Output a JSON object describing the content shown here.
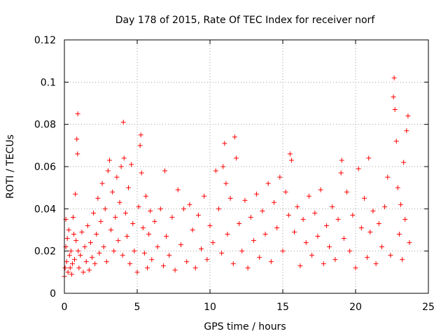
{
  "chart_data": {
    "type": "scatter",
    "title": "Day 178 of 2015, Rate Of TEC Index for receiver norf",
    "xlabel": "GPS time / hours",
    "ylabel": "ROTI / TECUs",
    "xlim": [
      0,
      25
    ],
    "ylim": [
      0,
      0.12
    ],
    "x_ticks": [
      0,
      5,
      10,
      15,
      20,
      25
    ],
    "x_tick_labels": [
      "0",
      "5",
      "10",
      "15",
      "20",
      "25"
    ],
    "y_ticks": [
      0,
      0.02,
      0.04,
      0.06,
      0.08,
      0.1,
      0.12
    ],
    "y_tick_labels": [
      "0",
      "0.02",
      "0.04",
      "0.06",
      "0.08",
      "0.1",
      "0.12"
    ],
    "grid": true,
    "legend": "none",
    "marker": "plus",
    "series": [
      {
        "color": "#ff0000",
        "points": [
          [
            0.0,
            0.008
          ],
          [
            0.05,
            0.012
          ],
          [
            0.1,
            0.022
          ],
          [
            0.1,
            0.035
          ],
          [
            0.15,
            0.015
          ],
          [
            0.2,
            0.026
          ],
          [
            0.25,
            0.01
          ],
          [
            0.3,
            0.03
          ],
          [
            0.35,
            0.018
          ],
          [
            0.4,
            0.012
          ],
          [
            0.45,
            0.02
          ],
          [
            0.5,
            0.009
          ],
          [
            0.55,
            0.014
          ],
          [
            0.6,
            0.036
          ],
          [
            0.65,
            0.028
          ],
          [
            0.7,
            0.016
          ],
          [
            0.75,
            0.047
          ],
          [
            0.8,
            0.025
          ],
          [
            0.85,
            0.073
          ],
          [
            0.9,
            0.066
          ],
          [
            0.92,
            0.085
          ],
          [
            0.95,
            0.02
          ],
          [
            1.0,
            0.012
          ],
          [
            1.1,
            0.018
          ],
          [
            1.2,
            0.029
          ],
          [
            1.3,
            0.01
          ],
          [
            1.4,
            0.022
          ],
          [
            1.5,
            0.015
          ],
          [
            1.6,
            0.032
          ],
          [
            1.7,
            0.011
          ],
          [
            1.8,
            0.024
          ],
          [
            1.9,
            0.017
          ],
          [
            2.0,
            0.038
          ],
          [
            2.1,
            0.014
          ],
          [
            2.2,
            0.028
          ],
          [
            2.3,
            0.045
          ],
          [
            2.4,
            0.019
          ],
          [
            2.5,
            0.034
          ],
          [
            2.6,
            0.052
          ],
          [
            2.7,
            0.022
          ],
          [
            2.8,
            0.04
          ],
          [
            2.9,
            0.015
          ],
          [
            3.0,
            0.058
          ],
          [
            3.1,
            0.063
          ],
          [
            3.2,
            0.03
          ],
          [
            3.3,
            0.048
          ],
          [
            3.4,
            0.02
          ],
          [
            3.5,
            0.036
          ],
          [
            3.6,
            0.055
          ],
          [
            3.7,
            0.025
          ],
          [
            3.8,
            0.043
          ],
          [
            3.9,
            0.06
          ],
          [
            4.0,
            0.018
          ],
          [
            4.05,
            0.081
          ],
          [
            4.1,
            0.064
          ],
          [
            4.2,
            0.038
          ],
          [
            4.3,
            0.027
          ],
          [
            4.4,
            0.05
          ],
          [
            4.5,
            0.014
          ],
          [
            4.6,
            0.061
          ],
          [
            4.7,
            0.033
          ],
          [
            4.8,
            0.02
          ],
          [
            5.0,
            0.01
          ],
          [
            5.1,
            0.041
          ],
          [
            5.2,
            0.07
          ],
          [
            5.25,
            0.075
          ],
          [
            5.3,
            0.057
          ],
          [
            5.4,
            0.031
          ],
          [
            5.5,
            0.019
          ],
          [
            5.6,
            0.046
          ],
          [
            5.7,
            0.012
          ],
          [
            5.8,
            0.028
          ],
          [
            5.9,
            0.039
          ],
          [
            6.0,
            0.016
          ],
          [
            6.2,
            0.034
          ],
          [
            6.4,
            0.022
          ],
          [
            6.6,
            0.04
          ],
          [
            6.8,
            0.013
          ],
          [
            6.9,
            0.058
          ],
          [
            7.0,
            0.027
          ],
          [
            7.2,
            0.018
          ],
          [
            7.4,
            0.036
          ],
          [
            7.6,
            0.011
          ],
          [
            7.8,
            0.049
          ],
          [
            8.0,
            0.023
          ],
          [
            8.2,
            0.04
          ],
          [
            8.4,
            0.015
          ],
          [
            8.6,
            0.042
          ],
          [
            8.8,
            0.03
          ],
          [
            9.0,
            0.012
          ],
          [
            9.2,
            0.037
          ],
          [
            9.4,
            0.021
          ],
          [
            9.6,
            0.046
          ],
          [
            9.8,
            0.016
          ],
          [
            10.0,
            0.032
          ],
          [
            10.2,
            0.024
          ],
          [
            10.4,
            0.058
          ],
          [
            10.6,
            0.04
          ],
          [
            10.8,
            0.019
          ],
          [
            10.9,
            0.06
          ],
          [
            11.0,
            0.071
          ],
          [
            11.1,
            0.052
          ],
          [
            11.2,
            0.028
          ],
          [
            11.4,
            0.045
          ],
          [
            11.6,
            0.014
          ],
          [
            11.7,
            0.074
          ],
          [
            11.8,
            0.064
          ],
          [
            12.0,
            0.033
          ],
          [
            12.2,
            0.02
          ],
          [
            12.4,
            0.044
          ],
          [
            12.6,
            0.012
          ],
          [
            12.8,
            0.036
          ],
          [
            13.0,
            0.025
          ],
          [
            13.2,
            0.047
          ],
          [
            13.4,
            0.017
          ],
          [
            13.6,
            0.039
          ],
          [
            13.8,
            0.028
          ],
          [
            14.0,
            0.052
          ],
          [
            14.2,
            0.015
          ],
          [
            14.4,
            0.043
          ],
          [
            14.6,
            0.031
          ],
          [
            14.8,
            0.055
          ],
          [
            15.0,
            0.02
          ],
          [
            15.2,
            0.048
          ],
          [
            15.4,
            0.037
          ],
          [
            15.5,
            0.066
          ],
          [
            15.6,
            0.063
          ],
          [
            15.8,
            0.029
          ],
          [
            16.0,
            0.041
          ],
          [
            16.2,
            0.013
          ],
          [
            16.4,
            0.035
          ],
          [
            16.6,
            0.024
          ],
          [
            16.8,
            0.046
          ],
          [
            17.0,
            0.018
          ],
          [
            17.2,
            0.038
          ],
          [
            17.4,
            0.027
          ],
          [
            17.6,
            0.049
          ],
          [
            17.8,
            0.014
          ],
          [
            18.0,
            0.032
          ],
          [
            18.2,
            0.022
          ],
          [
            18.4,
            0.041
          ],
          [
            18.6,
            0.016
          ],
          [
            18.8,
            0.035
          ],
          [
            19.0,
            0.057
          ],
          [
            19.05,
            0.063
          ],
          [
            19.2,
            0.026
          ],
          [
            19.4,
            0.048
          ],
          [
            19.6,
            0.02
          ],
          [
            19.8,
            0.037
          ],
          [
            20.0,
            0.012
          ],
          [
            20.2,
            0.059
          ],
          [
            20.4,
            0.031
          ],
          [
            20.6,
            0.045
          ],
          [
            20.8,
            0.017
          ],
          [
            20.9,
            0.064
          ],
          [
            21.0,
            0.029
          ],
          [
            21.2,
            0.039
          ],
          [
            21.4,
            0.014
          ],
          [
            21.6,
            0.033
          ],
          [
            21.8,
            0.022
          ],
          [
            22.0,
            0.041
          ],
          [
            22.2,
            0.055
          ],
          [
            22.4,
            0.018
          ],
          [
            22.6,
            0.093
          ],
          [
            22.65,
            0.102
          ],
          [
            22.7,
            0.087
          ],
          [
            22.8,
            0.072
          ],
          [
            22.9,
            0.05
          ],
          [
            23.0,
            0.028
          ],
          [
            23.1,
            0.042
          ],
          [
            23.2,
            0.016
          ],
          [
            23.3,
            0.062
          ],
          [
            23.4,
            0.035
          ],
          [
            23.5,
            0.077
          ],
          [
            23.6,
            0.084
          ],
          [
            23.7,
            0.024
          ]
        ]
      }
    ]
  }
}
